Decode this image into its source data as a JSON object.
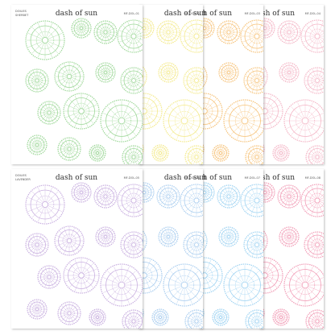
{
  "sheets": [
    {
      "brand": "dash of sun",
      "title": "DOILIES",
      "subtitle": "SHERBET",
      "code": "MF-DOL-01"
    },
    {
      "brand": "dash of sun",
      "code": "MF-DOL-02"
    },
    {
      "brand": "dash of sun",
      "code": "MF-DOL-03"
    },
    {
      "brand": "dash of sun",
      "code": "MF-DOL-04"
    },
    {
      "brand": "dash of sun",
      "title": "DOILIES",
      "subtitle": "LAVENDER",
      "code": "MF-DOL-05"
    },
    {
      "brand": "dash of sun",
      "code": "MF-DOL-06"
    },
    {
      "brand": "dash of sun",
      "code": "MF-DOL-07"
    },
    {
      "brand": "dash of sun",
      "code": "MF-DOL-08"
    }
  ]
}
